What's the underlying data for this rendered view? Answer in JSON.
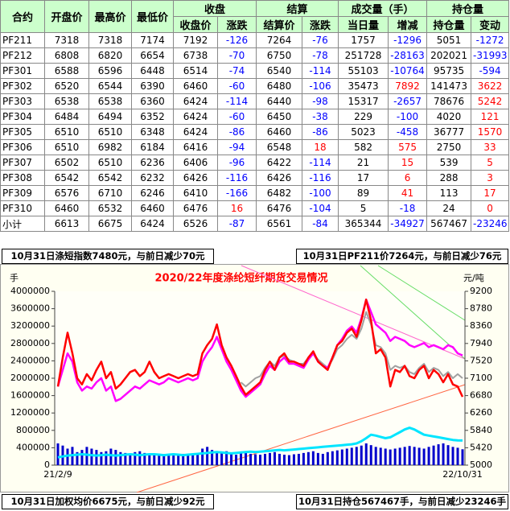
{
  "table": {
    "columns": [
      "合约",
      "开盘价",
      "最高价",
      "最低价"
    ],
    "groups": [
      {
        "name": "收盘",
        "columns": [
          "收盘价",
          "涨跌"
        ]
      },
      {
        "name": "结算",
        "columns": [
          "结算价",
          "涨跌"
        ]
      },
      {
        "name": "成交量（手）",
        "columns": [
          "当日量",
          "增减"
        ]
      },
      {
        "name": "持仓量",
        "columns": [
          "持仓量",
          "变动"
        ]
      }
    ],
    "rows": [
      [
        "PF211",
        7318,
        7318,
        7174,
        7192,
        -126,
        7264,
        -76,
        1757,
        -1296,
        5051,
        -1272
      ],
      [
        "PF212",
        6808,
        6820,
        6654,
        6738,
        -70,
        6750,
        -78,
        251728,
        -28163,
        202021,
        -31993
      ],
      [
        "PF301",
        6588,
        6596,
        6448,
        6514,
        -74,
        6540,
        -114,
        55103,
        -10764,
        95735,
        -594
      ],
      [
        "PF302",
        6520,
        6544,
        6390,
        6460,
        -60,
        6480,
        -106,
        35473,
        7892,
        141473,
        3622
      ],
      [
        "PF303",
        6538,
        6538,
        6360,
        6424,
        -114,
        6440,
        -98,
        15317,
        -2657,
        78676,
        5242
      ],
      [
        "PF304",
        6484,
        6494,
        6352,
        6424,
        -60,
        6450,
        -38,
        229,
        -100,
        4020,
        121
      ],
      [
        "PF305",
        6510,
        6510,
        6348,
        6424,
        -86,
        6460,
        -86,
        5023,
        -458,
        36777,
        1570
      ],
      [
        "PF306",
        6510,
        6982,
        6184,
        6416,
        -94,
        6548,
        18,
        582,
        575,
        2750,
        33
      ],
      [
        "PF307",
        6502,
        6510,
        6236,
        6406,
        -96,
        6422,
        -114,
        21,
        15,
        539,
        5
      ],
      [
        "PF308",
        6542,
        6542,
        6232,
        6426,
        -116,
        6426,
        -116,
        17,
        6,
        288,
        3
      ],
      [
        "PF309",
        6576,
        6710,
        6246,
        6410,
        -166,
        6482,
        -100,
        89,
        41,
        113,
        17
      ],
      [
        "PF310",
        6460,
        6532,
        6460,
        6476,
        16,
        6476,
        -104,
        5,
        -18,
        24,
        0
      ],
      [
        "小计",
        6613,
        6675,
        6424,
        6526,
        -87,
        6561,
        -84,
        365344,
        -34927,
        567467,
        -23246
      ]
    ]
  },
  "notes": {
    "top_left": "10月31日涤短指数7480元，与前日减少70元",
    "top_right": "10月31日PF211价7264元，与前日减少76元",
    "bottom_left": "10月31日加权均价6675元，与前日减少92元",
    "bottom_right": "10月31日持仓567467手，与前日减少23246手"
  },
  "chart_data": {
    "type": "combo",
    "title": "2020/22年度涤纶短纤期货交易情况",
    "y_label": "手",
    "y2_label": "元/吨",
    "ylim": [
      0,
      4000000
    ],
    "yticks": [
      0,
      400000,
      800000,
      1200000,
      1600000,
      2000000,
      2400000,
      2800000,
      3200000,
      3600000,
      4000000
    ],
    "y2lim": [
      5000,
      9200
    ],
    "y2ticks": [
      5000,
      5420,
      5840,
      6260,
      6680,
      7100,
      7520,
      7940,
      8360,
      8780,
      9200
    ],
    "categories": [
      "21/2/9",
      null,
      null,
      null,
      null,
      null,
      null,
      null,
      null,
      null,
      null,
      null,
      null,
      null,
      null,
      null,
      null,
      null,
      null,
      null,
      null,
      null,
      null,
      null,
      null,
      null,
      null,
      null,
      null,
      null,
      null,
      null,
      null,
      null,
      null,
      null,
      null,
      null,
      null,
      null,
      null,
      null,
      null,
      null,
      null,
      null,
      null,
      null,
      null,
      null,
      null,
      null,
      null,
      null,
      null,
      null,
      null,
      null,
      null,
      null,
      null,
      null,
      null,
      null,
      null,
      null,
      null,
      null,
      null,
      null,
      null,
      null,
      null,
      null,
      null,
      null,
      null,
      null,
      null,
      null,
      null,
      null,
      null,
      null,
      "22/10/31"
    ],
    "series": [
      {
        "type": "bar",
        "color": "#0000cc",
        "values": [
          500000,
          450000,
          380000,
          420000,
          300000,
          350000,
          420000,
          380000,
          350000,
          300000,
          320000,
          380000,
          350000,
          300000,
          280000,
          250000,
          300000,
          320000,
          280000,
          260000,
          240000,
          260000,
          250000,
          230000,
          220000,
          240000,
          260000,
          250000,
          230000,
          240000,
          380000,
          420000,
          350000,
          300000,
          280000,
          320000,
          260000,
          240000,
          300000,
          280000,
          260000,
          250000,
          240000,
          260000,
          280000,
          300000,
          260000,
          240000,
          230000,
          250000,
          260000,
          280000,
          300000,
          320000,
          280000,
          260000,
          300000,
          320000,
          340000,
          360000,
          380000,
          400000,
          420000,
          450000,
          500000,
          460000,
          420000,
          400000,
          380000,
          360000,
          380000,
          400000,
          420000,
          440000,
          420000,
          400000,
          380000,
          420000,
          450000,
          480000,
          500000,
          460000,
          420000,
          400000,
          365344
        ]
      },
      {
        "type": "line",
        "color": "#00e5ff",
        "width": 3,
        "values": [
          180000,
          200000,
          220000,
          230000,
          240000,
          250000,
          240000,
          230000,
          220000,
          230000,
          240000,
          230000,
          220000,
          230000,
          240000,
          250000,
          240000,
          230000,
          240000,
          250000,
          250000,
          240000,
          230000,
          240000,
          250000,
          240000,
          230000,
          240000,
          250000,
          260000,
          270000,
          280000,
          290000,
          300000,
          290000,
          280000,
          270000,
          280000,
          290000,
          300000,
          310000,
          300000,
          310000,
          320000,
          330000,
          340000,
          350000,
          340000,
          350000,
          360000,
          370000,
          380000,
          390000,
          400000,
          410000,
          420000,
          430000,
          440000,
          450000,
          460000,
          470000,
          480000,
          500000,
          550000,
          620000,
          700000,
          680000,
          650000,
          620000,
          640000,
          700000,
          760000,
          820000,
          860000,
          820000,
          760000,
          700000,
          680000,
          660000,
          640000,
          620000,
          600000,
          580000,
          570000,
          567467
        ]
      },
      {
        "type": "line",
        "axis": "y2",
        "color": "#a0a0a0",
        "width": 2,
        "values": [
          null,
          null,
          null,
          null,
          null,
          null,
          null,
          null,
          null,
          null,
          null,
          null,
          null,
          null,
          null,
          null,
          null,
          null,
          null,
          null,
          null,
          null,
          null,
          null,
          null,
          null,
          null,
          null,
          null,
          null,
          null,
          null,
          null,
          null,
          null,
          null,
          null,
          null,
          7000,
          6900,
          7000,
          7100,
          7150,
          7350,
          7500,
          7400,
          7600,
          7650,
          7550,
          7500,
          7450,
          7450,
          7600,
          7700,
          7550,
          7450,
          7350,
          7550,
          7800,
          7900,
          8050,
          8150,
          8050,
          8300,
          8700,
          8400,
          7900,
          7850,
          7700,
          7300,
          7400,
          7350,
          7400,
          7250,
          7200,
          7350,
          7450,
          7250,
          7350,
          7300,
          7150,
          7250,
          7100,
          7200,
          7100
        ]
      },
      {
        "type": "line",
        "axis": "y2",
        "color": "#ff00ff",
        "width": 2.5,
        "values": [
          6900,
          7300,
          7700,
          7500,
          7000,
          6800,
          6900,
          6850,
          7000,
          7100,
          6800,
          6900,
          6550,
          6600,
          6700,
          6800,
          6900,
          6850,
          6950,
          7050,
          7000,
          6950,
          7000,
          7100,
          7050,
          7000,
          7050,
          7100,
          7050,
          7100,
          7500,
          7700,
          7850,
          8100,
          7800,
          7500,
          7300,
          7050,
          6800,
          6650,
          6750,
          6850,
          6950,
          7200,
          7400,
          7300,
          7500,
          7600,
          7450,
          7450,
          7400,
          7350,
          7550,
          7700,
          7500,
          7400,
          7350,
          7600,
          7900,
          8050,
          8250,
          8350,
          8200,
          8550,
          9000,
          8700,
          8400,
          8300,
          8200,
          8000,
          8100,
          8050,
          8000,
          7900,
          7850,
          7900,
          7950,
          7850,
          7900,
          7850,
          7800,
          7900,
          7850,
          7700,
          7650
        ]
      },
      {
        "type": "line",
        "axis": "y2",
        "color": "#ff0000",
        "width": 2.5,
        "values": [
          6900,
          7600,
          8200,
          7700,
          7100,
          6950,
          7200,
          7050,
          7300,
          7500,
          7100,
          7250,
          6850,
          6950,
          7100,
          7250,
          7300,
          7150,
          7250,
          7500,
          7250,
          7100,
          7150,
          7200,
          7150,
          7100,
          7150,
          7200,
          7150,
          7200,
          7700,
          7900,
          8050,
          8400,
          7900,
          7600,
          7400,
          7150,
          6900,
          6700,
          6800,
          6900,
          7000,
          7300,
          7500,
          7300,
          7600,
          7700,
          7500,
          7500,
          7450,
          7400,
          7600,
          7750,
          7500,
          7400,
          7300,
          7600,
          7900,
          8000,
          8200,
          8300,
          8100,
          8500,
          9000,
          8500,
          7700,
          7800,
          7600,
          6900,
          7300,
          7250,
          7400,
          7150,
          7100,
          7300,
          7400,
          7100,
          7300,
          7200,
          7000,
          7200,
          6950,
          6900,
          6650
        ]
      }
    ]
  }
}
